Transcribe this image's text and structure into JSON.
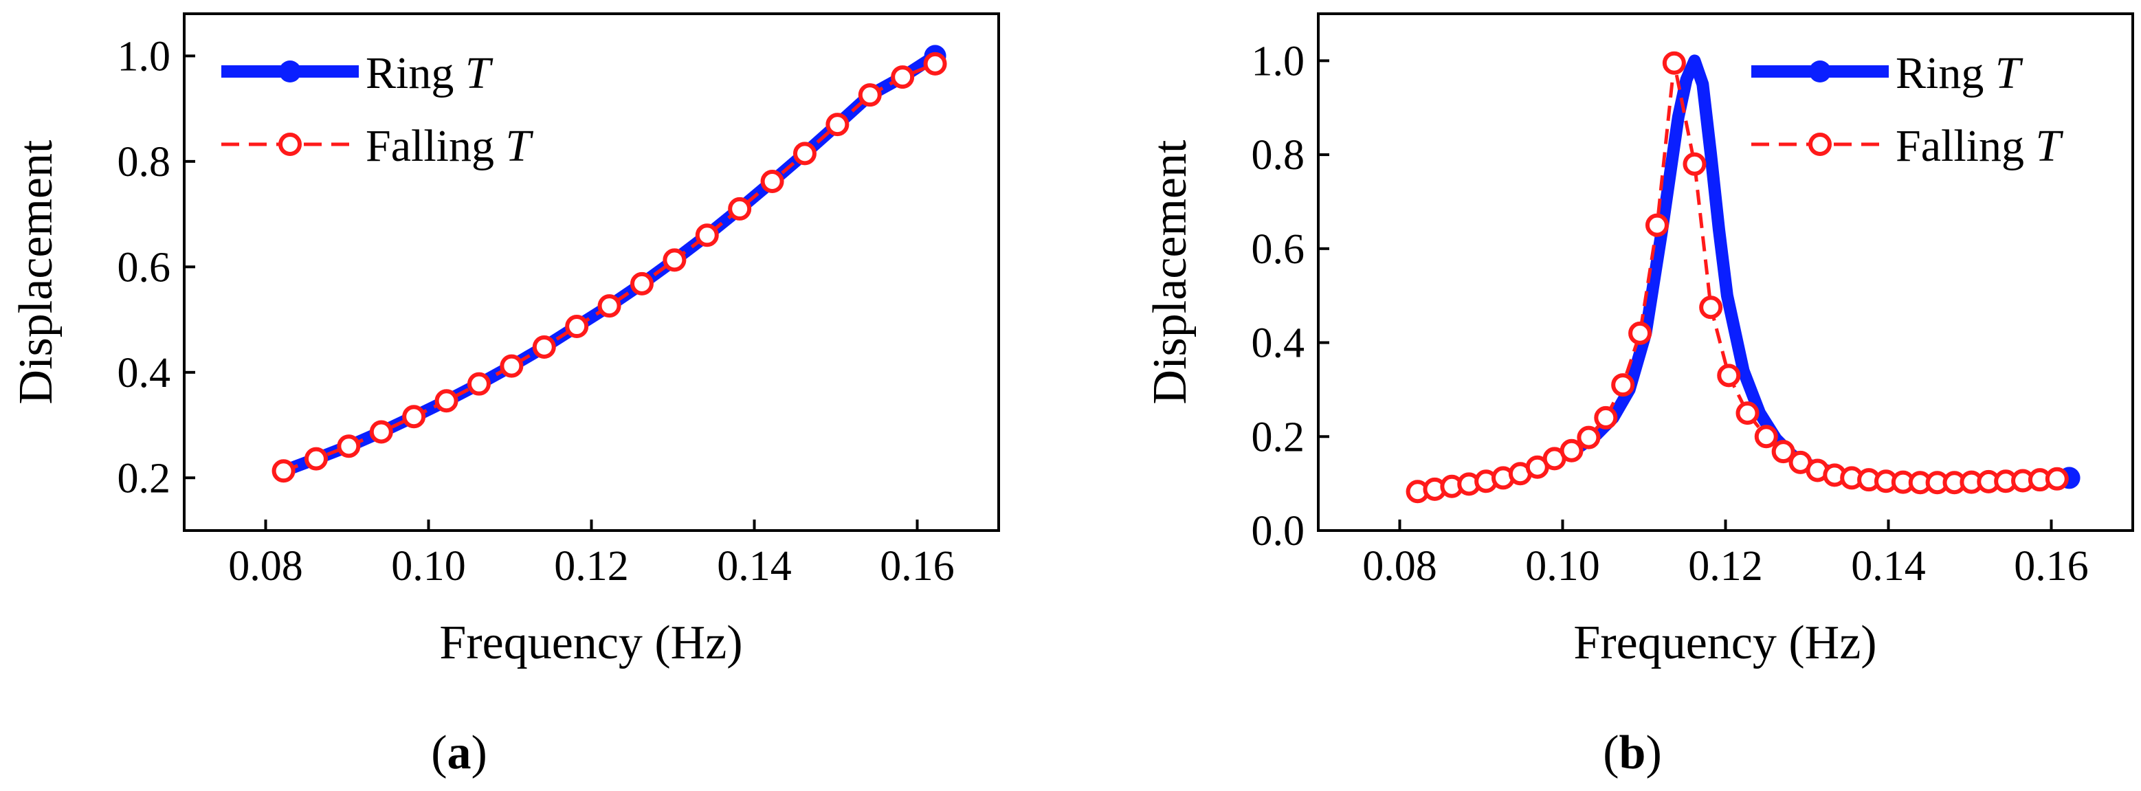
{
  "colors": {
    "ring": "#0a1fff",
    "falling": "#ff1a1a",
    "axis": "#000000",
    "marker_fill": "#ffffff"
  },
  "chart_data": [
    {
      "type": "line",
      "panel_label": "a",
      "xlabel": "Frequency (Hz)",
      "ylabel": "Displacement",
      "xlim": [
        0.07,
        0.17
      ],
      "ylim": [
        0.1,
        1.08
      ],
      "x_ticks": [
        0.08,
        0.1,
        0.12,
        0.14,
        0.16
      ],
      "x_tick_labels": [
        "0.08",
        "0.10",
        "0.12",
        "0.14",
        "0.16"
      ],
      "y_ticks": [
        0.2,
        0.4,
        0.6,
        0.8,
        1.0
      ],
      "y_tick_labels": [
        "0.2",
        "0.4",
        "0.6",
        "0.8",
        "1.0"
      ],
      "legend_position": "top-left",
      "series": [
        {
          "name": "Ring",
          "name_italic": "T",
          "style": "solid-filled-markers",
          "x": [
            0.0822,
            0.0862,
            0.0902,
            0.0942,
            0.0982,
            0.1022,
            0.1062,
            0.1102,
            0.1142,
            0.1182,
            0.1222,
            0.1262,
            0.1302,
            0.1342,
            0.1382,
            0.1422,
            0.1462,
            0.1502,
            0.1542,
            0.1582,
            0.1622
          ],
          "y": [
            0.213,
            0.236,
            0.26,
            0.287,
            0.316,
            0.346,
            0.378,
            0.412,
            0.448,
            0.487,
            0.526,
            0.568,
            0.613,
            0.66,
            0.71,
            0.762,
            0.815,
            0.87,
            0.926,
            0.96,
            1.0
          ]
        },
        {
          "name": "Falling",
          "name_italic": "T",
          "style": "dashed-hollow-markers",
          "x": [
            0.0822,
            0.0862,
            0.0902,
            0.0942,
            0.0982,
            0.1022,
            0.1062,
            0.1102,
            0.1142,
            0.1182,
            0.1222,
            0.1262,
            0.1302,
            0.1342,
            0.1382,
            0.1422,
            0.1462,
            0.1502,
            0.1542,
            0.1582,
            0.1622
          ],
          "y": [
            0.213,
            0.236,
            0.26,
            0.287,
            0.316,
            0.346,
            0.378,
            0.412,
            0.448,
            0.487,
            0.526,
            0.568,
            0.613,
            0.66,
            0.71,
            0.762,
            0.815,
            0.87,
            0.926,
            0.96,
            0.985
          ]
        }
      ]
    },
    {
      "type": "line",
      "panel_label": "b",
      "xlabel": "Frequency (Hz)",
      "ylabel": "Displacement",
      "xlim": [
        0.07,
        0.17
      ],
      "ylim": [
        0.0,
        1.1
      ],
      "x_ticks": [
        0.08,
        0.1,
        0.12,
        0.14,
        0.16
      ],
      "x_tick_labels": [
        "0.08",
        "0.10",
        "0.12",
        "0.14",
        "0.16"
      ],
      "y_ticks": [
        0.0,
        0.2,
        0.4,
        0.6,
        0.8,
        1.0
      ],
      "y_tick_labels": [
        "0.0",
        "0.2",
        "0.4",
        "0.6",
        "0.8",
        "1.0"
      ],
      "legend_position": "top-right",
      "series": [
        {
          "name": "Ring",
          "name_italic": "T",
          "style": "solid-line-end-marker",
          "x": [
            0.0822,
            0.0862,
            0.0902,
            0.0942,
            0.0982,
            0.1022,
            0.1042,
            0.1062,
            0.1082,
            0.1102,
            0.1122,
            0.1142,
            0.1152,
            0.1162,
            0.1172,
            0.1182,
            0.1192,
            0.1202,
            0.1222,
            0.1242,
            0.1262,
            0.1282,
            0.1302,
            0.1342,
            0.1382,
            0.1422,
            0.1462,
            0.1502,
            0.1542,
            0.1582,
            0.1622
          ],
          "y": [
            0.085,
            0.094,
            0.105,
            0.12,
            0.145,
            0.18,
            0.205,
            0.24,
            0.3,
            0.42,
            0.64,
            0.88,
            0.96,
            1.0,
            0.95,
            0.8,
            0.64,
            0.5,
            0.34,
            0.25,
            0.195,
            0.16,
            0.14,
            0.118,
            0.108,
            0.104,
            0.104,
            0.106,
            0.108,
            0.11,
            0.112
          ]
        },
        {
          "name": "Falling",
          "name_italic": "T",
          "style": "dashed-hollow-markers",
          "x": [
            0.0822,
            0.0843,
            0.0864,
            0.0885,
            0.0906,
            0.0927,
            0.0948,
            0.0969,
            0.099,
            0.1011,
            0.1032,
            0.1053,
            0.1074,
            0.1095,
            0.1116,
            0.1137,
            0.1162,
            0.1182,
            0.1204,
            0.1227,
            0.125,
            0.1271,
            0.1292,
            0.1313,
            0.1334,
            0.1355,
            0.1376,
            0.1397,
            0.1418,
            0.1439,
            0.146,
            0.1481,
            0.1502,
            0.1523,
            0.1544,
            0.1565,
            0.1586,
            0.1607
          ],
          "y": [
            0.083,
            0.088,
            0.094,
            0.099,
            0.105,
            0.112,
            0.121,
            0.135,
            0.153,
            0.17,
            0.198,
            0.24,
            0.31,
            0.42,
            0.65,
            0.995,
            0.78,
            0.475,
            0.33,
            0.25,
            0.2,
            0.168,
            0.145,
            0.128,
            0.118,
            0.112,
            0.108,
            0.105,
            0.103,
            0.102,
            0.102,
            0.102,
            0.103,
            0.104,
            0.105,
            0.106,
            0.108,
            0.11
          ]
        }
      ]
    }
  ]
}
